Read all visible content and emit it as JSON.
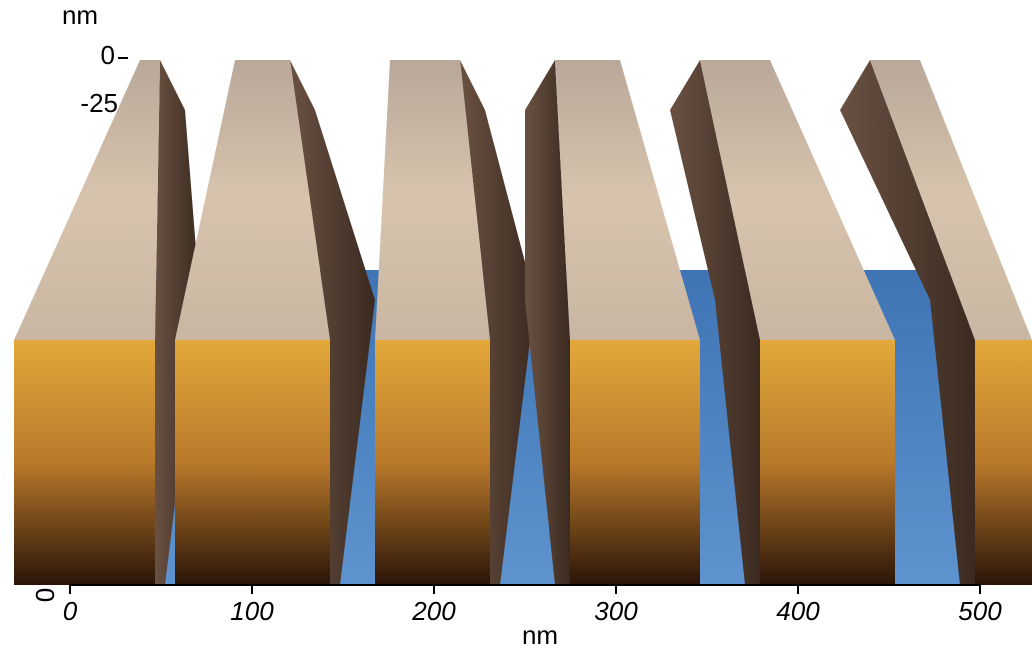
{
  "z_axis": {
    "label": "nm",
    "ticks": [
      "0",
      "-25"
    ]
  },
  "y_axis": {
    "ticks": [
      "0"
    ]
  },
  "x_axis": {
    "label": "nm",
    "ticks": [
      "0",
      "100",
      "200",
      "300",
      "400",
      "500"
    ]
  }
}
